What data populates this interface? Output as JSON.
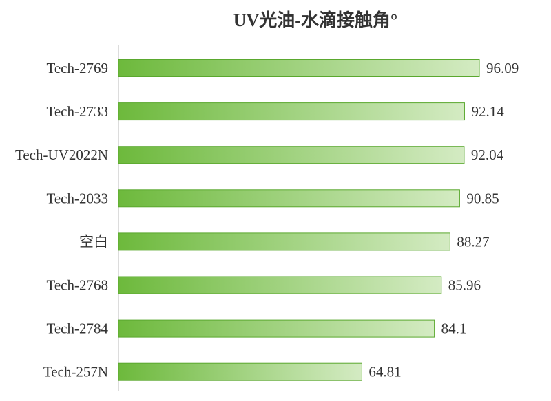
{
  "chart_data": {
    "type": "bar",
    "orientation": "horizontal",
    "title": "UV光油-水滴接触角°",
    "xlabel": "",
    "ylabel": "",
    "categories": [
      "Tech-2769",
      "Tech-2733",
      "Tech-UV2022N",
      "Tech-2033",
      "空白",
      "Tech-2768",
      "Tech-2784",
      "Tech-257N"
    ],
    "values": [
      96.09,
      92.14,
      92.04,
      90.85,
      88.27,
      85.96,
      84.1,
      64.81
    ],
    "value_labels": [
      "96.09",
      "92.14",
      "92.04",
      "90.85",
      "88.27",
      "85.96",
      "84.1",
      "64.81"
    ],
    "xlim": [
      0,
      100
    ],
    "grid": false,
    "legend": "none",
    "colors": {
      "bar_start": "#6db93c",
      "bar_end": "#d4ebc3",
      "bar_border": "#5aa82e",
      "axis": "#d0d0d0",
      "text": "#333333"
    }
  }
}
